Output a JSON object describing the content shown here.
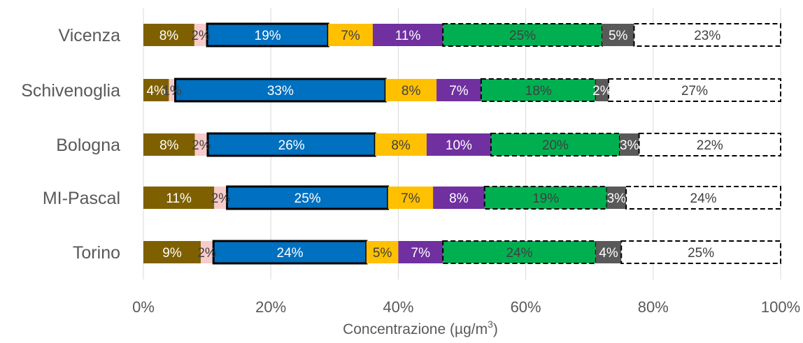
{
  "chart_data": {
    "type": "bar",
    "orientation": "horizontal",
    "stacked": true,
    "categories": [
      "Vicenza",
      "Schivenoglia",
      "Bologna",
      "MI-Pascal",
      "Torino"
    ],
    "xlabel": "Concentrazione (µg/m³)",
    "xlabel_prefix": "Concentrazione (µg/m",
    "xlabel_sup": "3",
    "xlabel_suffix": ")",
    "xlim": [
      0,
      100
    ],
    "xticks": [
      "0%",
      "20%",
      "40%",
      "60%",
      "80%",
      "100%"
    ],
    "grid": "vertical",
    "legend": "none",
    "series": [
      {
        "color": "#7f6000",
        "text_color": "#ffffff",
        "border": "none",
        "values": [
          8,
          4,
          8,
          11,
          9
        ],
        "labels": [
          "8%",
          "4%",
          "8%",
          "11%",
          "9%"
        ]
      },
      {
        "color": "#f8cbcb",
        "text_color": "#404040",
        "border": "none",
        "values": [
          2,
          1,
          2,
          2,
          2
        ],
        "labels": [
          "2%",
          "1%",
          "2%",
          "2%",
          "2%"
        ]
      },
      {
        "color": "#0070c0",
        "text_color": "#ffffff",
        "border": "solid",
        "values": [
          19,
          33,
          26,
          25,
          24
        ],
        "labels": [
          "19%",
          "33%",
          "26%",
          "25%",
          "24%"
        ]
      },
      {
        "color": "#ffc000",
        "text_color": "#404040",
        "border": "none",
        "values": [
          7,
          8,
          8,
          7,
          5
        ],
        "labels": [
          "7%",
          "8%",
          "8%",
          "7%",
          "5%"
        ]
      },
      {
        "color": "#7030a0",
        "text_color": "#ffffff",
        "border": "none",
        "values": [
          11,
          7,
          10,
          8,
          7
        ],
        "labels": [
          "11%",
          "7%",
          "10%",
          "8%",
          "7%"
        ]
      },
      {
        "color": "#00b050",
        "text_color": "#404040",
        "border": "dashed",
        "values": [
          25,
          18,
          20,
          19,
          24
        ],
        "labels": [
          "25%",
          "18%",
          "20%",
          "19%",
          "24%"
        ]
      },
      {
        "color": "#595959",
        "text_color": "#ffffff",
        "border": "none",
        "values": [
          5,
          2,
          3,
          3,
          4
        ],
        "labels": [
          "5%",
          "2%",
          "3%",
          "3%",
          "4%"
        ]
      },
      {
        "color": "#ffffff",
        "text_color": "#404040",
        "border": "dashed",
        "values": [
          23,
          27,
          22,
          24,
          25
        ],
        "labels": [
          "23%",
          "27%",
          "22%",
          "24%",
          "25%"
        ]
      }
    ]
  }
}
